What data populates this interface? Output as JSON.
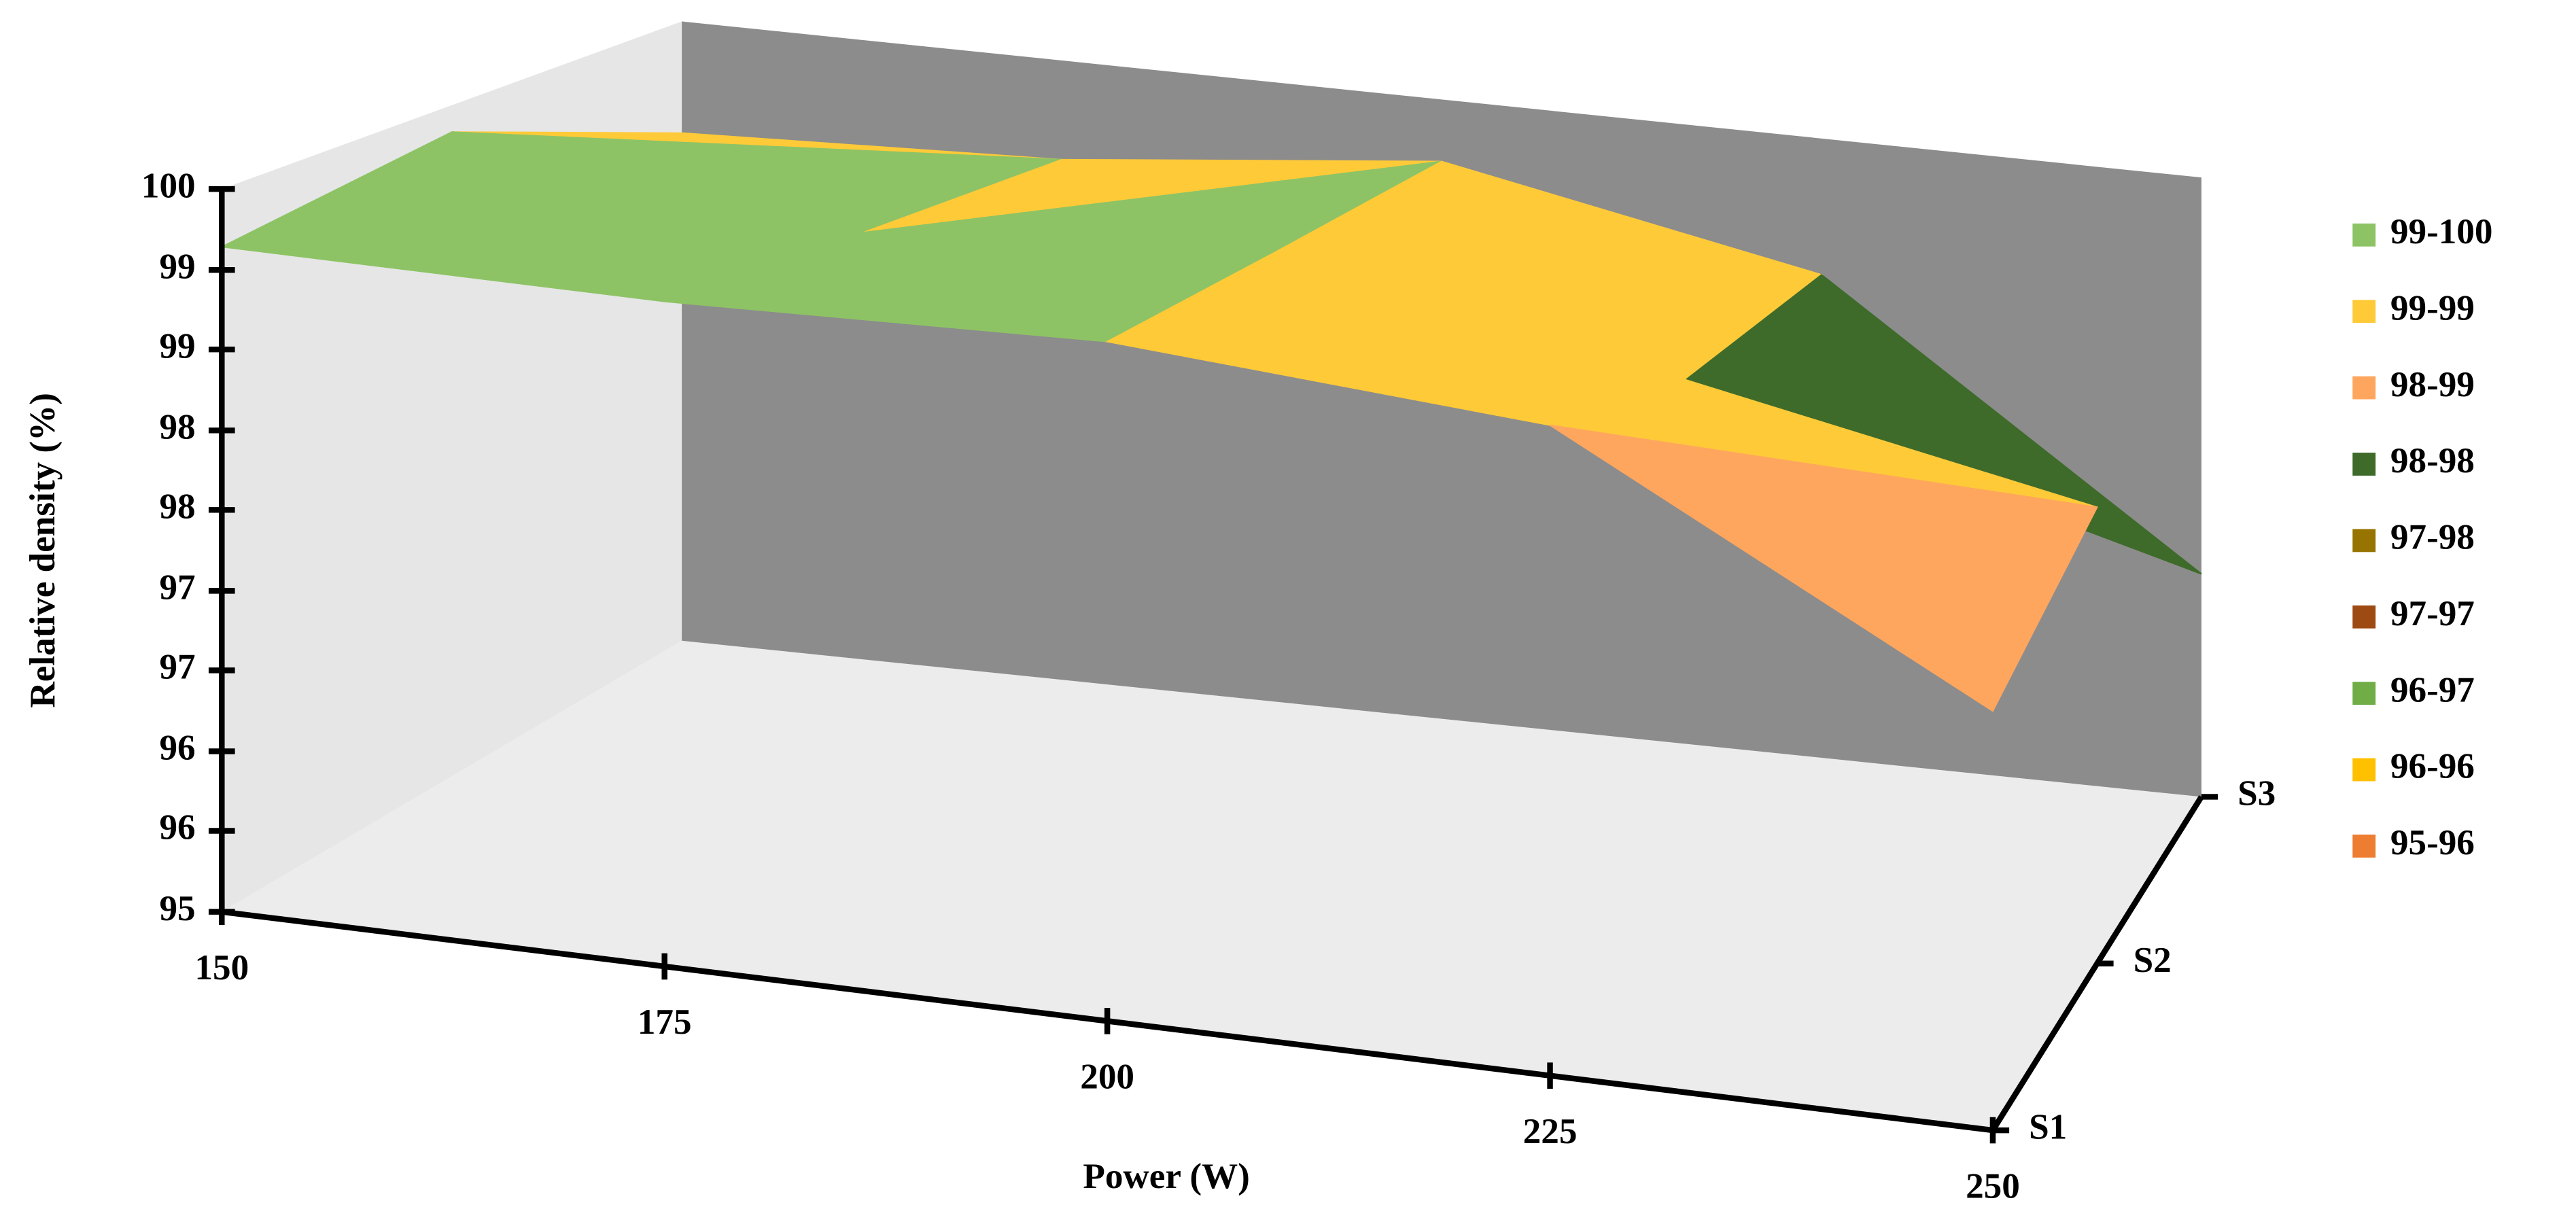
{
  "chart_data": {
    "type": "surface3d",
    "categories": [
      "150",
      "175",
      "200",
      "225",
      "250"
    ],
    "xlabel": "Power (W)",
    "ylabel": "Relative density (%)",
    "series": [
      {
        "name": "S1",
        "values": [
          99.6,
          99.6,
          99.7,
          99.5,
          97.9
        ]
      },
      {
        "name": "S2",
        "values": [
          99.8,
          99.4,
          99.6,
          99.0,
          98.4
        ]
      },
      {
        "name": "S3",
        "values": [
          99.1,
          99.2,
          99.5,
          98.9,
          96.8
        ]
      }
    ],
    "ylim": [
      95,
      100
    ],
    "yticks": [
      95,
      {
        "value": 95.56,
        "label": "96"
      },
      {
        "value": 96.11,
        "label": "96"
      },
      {
        "value": 96.67,
        "label": "97"
      },
      {
        "value": 97.22,
        "label": "97"
      },
      {
        "value": 97.78,
        "label": "98"
      },
      {
        "value": 98.33,
        "label": "98"
      },
      {
        "value": 98.89,
        "label": "99"
      },
      {
        "value": 99.44,
        "label": "99"
      },
      100
    ],
    "legend": [
      {
        "label": "99-100",
        "color": "#8dc365"
      },
      {
        "label": "99-99",
        "color": "#ffca38"
      },
      {
        "label": "98-99",
        "color": "#ffa65e"
      },
      {
        "label": "98-98",
        "color": "#3e6b2a"
      },
      {
        "label": "97-98",
        "color": "#977400"
      },
      {
        "label": "97-97",
        "color": "#9e4b13"
      },
      {
        "label": "96-97",
        "color": "#70ad47"
      },
      {
        "label": "96-96",
        "color": "#ffc000"
      },
      {
        "label": "95-96",
        "color": "#ed7d31"
      }
    ]
  }
}
